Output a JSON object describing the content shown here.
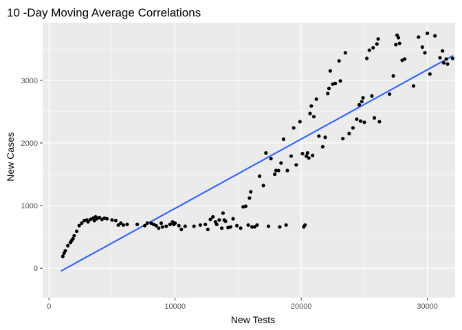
{
  "chart_data": {
    "type": "scatter",
    "title": "10 -Day Moving Average Correlations",
    "xlabel": "New Tests",
    "ylabel": "New Cases",
    "xlim": [
      -500,
      32200
    ],
    "ylim": [
      -470,
      3920
    ],
    "x_ticks": [
      0,
      10000,
      20000,
      30000
    ],
    "y_ticks": [
      0,
      1000,
      2000,
      3000
    ],
    "x_tick_labels": [
      "0",
      "10000",
      "20000",
      "30000"
    ],
    "y_tick_labels": [
      "0",
      "1000",
      "2000",
      "3000"
    ],
    "grid": true,
    "colors": {
      "panel": "#ebebeb",
      "grid": "#ffffff",
      "points": "#000000",
      "trend": "#3366ff"
    },
    "trend_line": {
      "x": [
        1000,
        32000
      ],
      "y": [
        -40,
        3390
      ]
    },
    "points": [
      [
        1100,
        190
      ],
      [
        1200,
        240
      ],
      [
        1300,
        280
      ],
      [
        1500,
        360
      ],
      [
        1700,
        410
      ],
      [
        1800,
        440
      ],
      [
        1900,
        470
      ],
      [
        2000,
        520
      ],
      [
        2200,
        590
      ],
      [
        2400,
        680
      ],
      [
        2600,
        720
      ],
      [
        2800,
        760
      ],
      [
        3000,
        770
      ],
      [
        3100,
        740
      ],
      [
        3300,
        780
      ],
      [
        3500,
        800
      ],
      [
        3600,
        760
      ],
      [
        3700,
        820
      ],
      [
        3800,
        790
      ],
      [
        4000,
        810
      ],
      [
        4200,
        780
      ],
      [
        4400,
        800
      ],
      [
        4600,
        790
      ],
      [
        5000,
        770
      ],
      [
        5300,
        760
      ],
      [
        5500,
        690
      ],
      [
        5700,
        720
      ],
      [
        5900,
        690
      ],
      [
        6200,
        700
      ],
      [
        7000,
        700
      ],
      [
        7600,
        680
      ],
      [
        7800,
        720
      ],
      [
        8100,
        720
      ],
      [
        8300,
        700
      ],
      [
        8500,
        680
      ],
      [
        8700,
        640
      ],
      [
        8900,
        720
      ],
      [
        9000,
        660
      ],
      [
        9300,
        670
      ],
      [
        9600,
        700
      ],
      [
        9800,
        740
      ],
      [
        9900,
        700
      ],
      [
        10000,
        720
      ],
      [
        10300,
        680
      ],
      [
        10500,
        620
      ],
      [
        10800,
        670
      ],
      [
        11500,
        670
      ],
      [
        12000,
        690
      ],
      [
        12400,
        700
      ],
      [
        12600,
        620
      ],
      [
        12800,
        780
      ],
      [
        13000,
        820
      ],
      [
        13200,
        740
      ],
      [
        13300,
        700
      ],
      [
        13500,
        770
      ],
      [
        13700,
        640
      ],
      [
        13800,
        880
      ],
      [
        13900,
        770
      ],
      [
        14000,
        750
      ],
      [
        14200,
        650
      ],
      [
        14400,
        660
      ],
      [
        14600,
        790
      ],
      [
        14900,
        680
      ],
      [
        15200,
        640
      ],
      [
        15400,
        980
      ],
      [
        15600,
        990
      ],
      [
        15800,
        690
      ],
      [
        15900,
        1120
      ],
      [
        16000,
        1220
      ],
      [
        16100,
        660
      ],
      [
        16300,
        660
      ],
      [
        16500,
        690
      ],
      [
        16700,
        1470
      ],
      [
        17000,
        1320
      ],
      [
        17200,
        1840
      ],
      [
        17400,
        670
      ],
      [
        17600,
        1750
      ],
      [
        17900,
        1500
      ],
      [
        18000,
        1560
      ],
      [
        18200,
        1560
      ],
      [
        18300,
        660
      ],
      [
        18400,
        1680
      ],
      [
        18600,
        2060
      ],
      [
        18800,
        690
      ],
      [
        18900,
        1560
      ],
      [
        19200,
        1790
      ],
      [
        19400,
        2240
      ],
      [
        19600,
        1650
      ],
      [
        19900,
        2340
      ],
      [
        20100,
        1830
      ],
      [
        20200,
        660
      ],
      [
        20300,
        690
      ],
      [
        20400,
        1790
      ],
      [
        20500,
        1840
      ],
      [
        20600,
        1760
      ],
      [
        20700,
        2470
      ],
      [
        20800,
        2590
      ],
      [
        20900,
        1800
      ],
      [
        21000,
        2420
      ],
      [
        21200,
        2700
      ],
      [
        21400,
        2110
      ],
      [
        21700,
        1940
      ],
      [
        21900,
        2090
      ],
      [
        22100,
        2790
      ],
      [
        22200,
        2870
      ],
      [
        22300,
        3150
      ],
      [
        22500,
        2940
      ],
      [
        22700,
        2950
      ],
      [
        23000,
        3310
      ],
      [
        23100,
        2990
      ],
      [
        23300,
        2070
      ],
      [
        23500,
        3440
      ],
      [
        23800,
        2150
      ],
      [
        24100,
        2240
      ],
      [
        24400,
        2380
      ],
      [
        24600,
        2610
      ],
      [
        24700,
        2350
      ],
      [
        24800,
        2660
      ],
      [
        24900,
        2720
      ],
      [
        25000,
        2330
      ],
      [
        25200,
        3350
      ],
      [
        25400,
        3480
      ],
      [
        25600,
        2750
      ],
      [
        25700,
        3520
      ],
      [
        25800,
        2400
      ],
      [
        26000,
        3580
      ],
      [
        26100,
        3660
      ],
      [
        26200,
        2340
      ],
      [
        27000,
        2780
      ],
      [
        27300,
        3070
      ],
      [
        27500,
        3570
      ],
      [
        27600,
        3720
      ],
      [
        27700,
        3680
      ],
      [
        27800,
        3590
      ],
      [
        28000,
        3320
      ],
      [
        28200,
        3340
      ],
      [
        28900,
        2910
      ],
      [
        29300,
        3690
      ],
      [
        29600,
        3530
      ],
      [
        29800,
        3440
      ],
      [
        30000,
        3750
      ],
      [
        30200,
        3100
      ],
      [
        30600,
        3710
      ],
      [
        31000,
        3360
      ],
      [
        31200,
        3470
      ],
      [
        31300,
        3280
      ],
      [
        31500,
        3340
      ],
      [
        31600,
        3260
      ],
      [
        32000,
        3350
      ]
    ]
  }
}
